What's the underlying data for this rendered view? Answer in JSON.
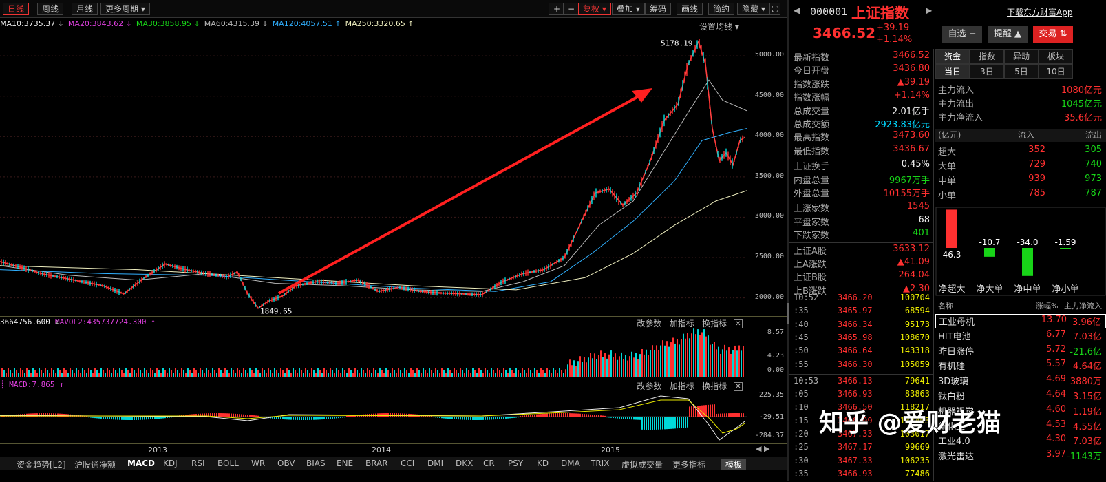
{
  "toolbar": {
    "periods": [
      "日线",
      "周线",
      "月线",
      "更多周期"
    ],
    "tools": [
      "+",
      "−",
      "复权",
      "叠加",
      "筹码",
      "画线",
      "简约",
      "隐藏"
    ]
  },
  "ma_row": {
    "items": [
      {
        "text": "MA10:3735.37 ↓",
        "color": "#eeeeee"
      },
      {
        "text": "MA20:3843.62 ↓",
        "color": "#e040e0"
      },
      {
        "text": "MA30:3858.95 ↓",
        "color": "#18d418"
      },
      {
        "text": "MA60:4315.39 ↓",
        "color": "#bbbbbb"
      },
      {
        "text": "MA120:4057.51 ↑",
        "color": "#30b0ff"
      },
      {
        "text": "MA250:3320.65 ↑",
        "color": "#f0f0c0"
      }
    ],
    "settings": "设置均线 ▾"
  },
  "main_axis": {
    "ticks": [
      "5000.00",
      "4500.00",
      "4000.00",
      "3500.00",
      "3000.00",
      "2500.00",
      "2000.00"
    ]
  },
  "annotations": {
    "high": "5178.19",
    "low": "1849.65"
  },
  "vol_head": {
    "left": "3664756.600 ↓",
    "ma": "MAVOL2:435737724.300 ↑",
    "buttons": [
      "改参数",
      "加指标",
      "换指标"
    ]
  },
  "vol_axis": {
    "ticks": [
      "8.57",
      "4.23",
      "0.00"
    ]
  },
  "macd_head": {
    "left": "MACD:7.865 ↑",
    "buttons": [
      "改参数",
      "加指标",
      "换指标"
    ]
  },
  "macd_axis": {
    "ticks": [
      "225.35",
      "-29.51",
      "-284.37"
    ]
  },
  "xaxis": {
    "labels": [
      "2013",
      "2014",
      "2015"
    ]
  },
  "indicator_tabs": [
    "资金趋势[L2]",
    "沪股通净额",
    "MACD",
    "KDJ",
    "RSI",
    "BOLL",
    "WR",
    "OBV",
    "BIAS",
    "ENE",
    "BRAR",
    "CCI",
    "DMI",
    "DKX",
    "CR",
    "PSY",
    "KD",
    "DMA",
    "TRIX",
    "虚拟成交量",
    "更多指标",
    "模板"
  ],
  "header": {
    "code": "000001",
    "name": "上证指数",
    "download": "下载东方财富App",
    "price": "3466.52",
    "change": "+39.19",
    "change_pct": "+1.14%",
    "buttons": [
      "自选 −",
      "提醒 ▲",
      "交易 ⇅"
    ]
  },
  "stats": [
    {
      "label": "最新指数",
      "value": "3466.52",
      "color": "red"
    },
    {
      "label": "今日开盘",
      "value": "3436.80",
      "color": "red"
    },
    {
      "label": "指数涨跌",
      "value": "▲39.19",
      "color": "red"
    },
    {
      "label": "指数涨幅",
      "value": "+1.14%",
      "color": "red"
    },
    {
      "label": "总成交量",
      "value": "2.01亿手",
      "color": "white"
    },
    {
      "label": "总成交额",
      "value": "2923.83亿元",
      "color": "cyan"
    },
    {
      "label": "最高指数",
      "value": "3473.60",
      "color": "red"
    },
    {
      "label": "最低指数",
      "value": "3436.67",
      "color": "red"
    },
    {
      "label": "上证换手",
      "value": "0.45%",
      "color": "white"
    },
    {
      "label": "内盘总量",
      "value": "9967万手",
      "color": "green"
    },
    {
      "label": "外盘总量",
      "value": "10155万手",
      "color": "red"
    },
    {
      "label": "上涨家数",
      "value": "1545",
      "color": "red"
    },
    {
      "label": "平盘家数",
      "value": "68",
      "color": "white"
    },
    {
      "label": "下跌家数",
      "value": "401",
      "color": "green"
    },
    {
      "label": "上证A股",
      "value": "3633.12",
      "color": "red"
    },
    {
      "label": "上A涨跌",
      "value": "▲41.09",
      "color": "red"
    },
    {
      "label": "上证B股",
      "value": "264.04",
      "color": "red"
    },
    {
      "label": "上B涨跌",
      "value": "▲2.30",
      "color": "red"
    }
  ],
  "ticks": [
    {
      "t": "10:52",
      "p": "3466.20",
      "q": "100704"
    },
    {
      "t": ":35",
      "p": "3465.97",
      "q": "68594"
    },
    {
      "t": ":40",
      "p": "3466.34",
      "q": "95173"
    },
    {
      "t": ":45",
      "p": "3465.98",
      "q": "108670"
    },
    {
      "t": ":50",
      "p": "3466.64",
      "q": "143318"
    },
    {
      "t": ":55",
      "p": "3466.30",
      "q": "105059"
    },
    {
      "t": "10:53",
      "p": "3466.13",
      "q": "79641"
    },
    {
      "t": ":05",
      "p": "3466.93",
      "q": "83863"
    },
    {
      "t": ":10",
      "p": "3466.50",
      "q": "118217"
    },
    {
      "t": ":15",
      "p": "3466.99",
      "q": "133403"
    },
    {
      "t": ":20",
      "p": "3467.33",
      "q": "103017"
    },
    {
      "t": ":25",
      "p": "3467.17",
      "q": "99669"
    },
    {
      "t": ":30",
      "p": "3467.33",
      "q": "106235"
    },
    {
      "t": ":35",
      "p": "3466.93",
      "q": "77486"
    }
  ],
  "flow_tabs_top": [
    "资金",
    "指数",
    "异动",
    "板块"
  ],
  "flow_tabs_bottom": [
    "当日",
    "3日",
    "5日",
    "10日"
  ],
  "flow": [
    {
      "label": "主力流入",
      "value": "1080亿元",
      "color": "red"
    },
    {
      "label": "主力流出",
      "value": "1045亿元",
      "color": "green"
    },
    {
      "label": "主力净流入",
      "value": "35.6亿元",
      "color": "red"
    }
  ],
  "flow_table": {
    "head": [
      "(亿元)",
      "流入",
      "流出"
    ],
    "rows": [
      {
        "label": "超大",
        "in": "352",
        "out": "305"
      },
      {
        "label": "大单",
        "in": "729",
        "out": "740"
      },
      {
        "label": "中单",
        "in": "939",
        "out": "973"
      },
      {
        "label": "小单",
        "in": "785",
        "out": "787"
      }
    ]
  },
  "net_bars": {
    "values": [
      46.3,
      -10.7,
      -34.0,
      -1.59
    ],
    "value_labels": [
      "46.3",
      "-10.7",
      "-34.0",
      "-1.59"
    ],
    "labels": [
      "净超大",
      "净大单",
      "净中单",
      "净小单"
    ]
  },
  "sectors": {
    "head": [
      "名称",
      "涨幅%",
      "主力净流入"
    ],
    "rows": [
      {
        "name": "工业母机",
        "chg": "13.70",
        "flow": "3.96亿",
        "flow_color": "red",
        "hl": true
      },
      {
        "name": "HIT电池",
        "chg": "6.77",
        "flow": "7.03亿",
        "flow_color": "red"
      },
      {
        "name": "昨日涨停",
        "chg": "5.72",
        "flow": "-21.6亿",
        "flow_color": "green"
      },
      {
        "name": "有机硅",
        "chg": "5.57",
        "flow": "4.64亿",
        "flow_color": "red"
      },
      {
        "name": "3D玻璃",
        "chg": "4.69",
        "flow": "3880万",
        "flow_color": "red"
      },
      {
        "name": "钛白粉",
        "chg": "4.64",
        "flow": "3.15亿",
        "flow_color": "red"
      },
      {
        "name": "机器视觉",
        "chg": "4.60",
        "flow": "1.19亿",
        "flow_color": "red"
      },
      {
        "name": "氟化工",
        "chg": "4.53",
        "flow": "4.55亿",
        "flow_color": "red"
      },
      {
        "name": "工业4.0",
        "chg": "4.30",
        "flow": "7.03亿",
        "flow_color": "red"
      },
      {
        "name": "激光雷达",
        "chg": "3.97",
        "flow": "-1143万",
        "flow_color": "green"
      }
    ]
  },
  "watermark": "知乎 @爱财老猫",
  "chart_data": {
    "type": "line",
    "title": "",
    "ylim": [
      1800,
      5300
    ],
    "x_labels": [
      "2013",
      "2014",
      "2015"
    ],
    "series": [
      {
        "name": "close",
        "points": [
          [
            0,
            2450
          ],
          [
            30,
            2380
          ],
          [
            60,
            2300
          ],
          [
            90,
            2250
          ],
          [
            120,
            2200
          ],
          [
            150,
            2150
          ],
          [
            180,
            2050
          ],
          [
            210,
            2250
          ],
          [
            240,
            2420
          ],
          [
            270,
            2350
          ],
          [
            300,
            2300
          ],
          [
            330,
            2260
          ],
          [
            345,
            2320
          ],
          [
            360,
            2050
          ],
          [
            375,
            1870
          ],
          [
            390,
            1960
          ],
          [
            410,
            2020
          ],
          [
            430,
            2150
          ],
          [
            460,
            2200
          ],
          [
            490,
            2180
          ],
          [
            520,
            2220
          ],
          [
            550,
            2080
          ],
          [
            580,
            2130
          ],
          [
            610,
            2080
          ],
          [
            640,
            2060
          ],
          [
            670,
            2050
          ],
          [
            700,
            2040
          ],
          [
            730,
            2200
          ],
          [
            760,
            2300
          ],
          [
            790,
            2350
          ],
          [
            820,
            2500
          ],
          [
            845,
            2950
          ],
          [
            865,
            3300
          ],
          [
            885,
            3350
          ],
          [
            905,
            3150
          ],
          [
            925,
            3300
          ],
          [
            945,
            3700
          ],
          [
            965,
            4200
          ],
          [
            985,
            4400
          ],
          [
            1000,
            4900
          ],
          [
            1015,
            5178
          ],
          [
            1025,
            4900
          ],
          [
            1035,
            4100
          ],
          [
            1045,
            3700
          ],
          [
            1055,
            3800
          ],
          [
            1065,
            3650
          ],
          [
            1075,
            3950
          ],
          [
            1082,
            3990
          ]
        ]
      },
      {
        "name": "MA60",
        "points": [
          [
            0,
            2400
          ],
          [
            100,
            2280
          ],
          [
            200,
            2220
          ],
          [
            300,
            2300
          ],
          [
            400,
            2180
          ],
          [
            500,
            2150
          ],
          [
            600,
            2100
          ],
          [
            700,
            2080
          ],
          [
            760,
            2200
          ],
          [
            820,
            2400
          ],
          [
            870,
            2900
          ],
          [
            920,
            3200
          ],
          [
            960,
            3750
          ],
          [
            1000,
            4300
          ],
          [
            1030,
            4700
          ],
          [
            1050,
            4450
          ],
          [
            1085,
            4320
          ]
        ]
      },
      {
        "name": "MA120",
        "points": [
          [
            0,
            2350
          ],
          [
            150,
            2300
          ],
          [
            300,
            2280
          ],
          [
            450,
            2200
          ],
          [
            600,
            2120
          ],
          [
            720,
            2080
          ],
          [
            800,
            2200
          ],
          [
            860,
            2550
          ],
          [
            920,
            2950
          ],
          [
            980,
            3450
          ],
          [
            1020,
            3950
          ],
          [
            1060,
            4050
          ],
          [
            1085,
            4100
          ]
        ]
      },
      {
        "name": "MA250",
        "points": [
          [
            0,
            2400
          ],
          [
            200,
            2350
          ],
          [
            400,
            2250
          ],
          [
            600,
            2150
          ],
          [
            750,
            2100
          ],
          [
            850,
            2250
          ],
          [
            920,
            2550
          ],
          [
            980,
            2900
          ],
          [
            1040,
            3200
          ],
          [
            1085,
            3330
          ]
        ]
      }
    ]
  }
}
